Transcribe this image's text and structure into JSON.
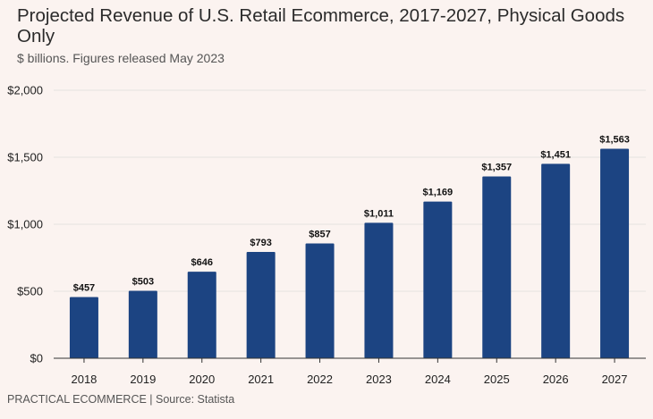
{
  "header": {
    "title": "Projected Revenue of U.S. Retail Ecommerce, 2017-2027, Physical Goods Only",
    "subtitle": "$ billions. Figures released May 2023"
  },
  "footer": {
    "source": "PRACTICAL ECOMMERCE | Source: Statista"
  },
  "chart_data": {
    "type": "bar",
    "title": "Projected Revenue of U.S. Retail Ecommerce, 2017-2027, Physical Goods Only",
    "subtitle": "$ billions. Figures released May 2023",
    "categories": [
      "2018",
      "2019",
      "2020",
      "2021",
      "2022",
      "2023",
      "2024",
      "2025",
      "2026",
      "2027"
    ],
    "values": [
      457,
      503,
      646,
      793,
      857,
      1011,
      1169,
      1357,
      1451,
      1563
    ],
    "data_labels": [
      "$457",
      "$503",
      "$646",
      "$793",
      "$857",
      "$1,011",
      "$1,169",
      "$1,357",
      "$1,451",
      "$1,563"
    ],
    "yticks": [
      0,
      500,
      1000,
      1500,
      2000
    ],
    "ytick_labels": [
      "$0",
      "$500",
      "$1,000",
      "$1,500",
      "$2,000"
    ],
    "ylim": [
      0,
      2000
    ],
    "xlabel": "",
    "ylabel": "",
    "grid": true,
    "legend": "none",
    "bar_color": "#1c4482",
    "grid_color": "#e6e3e1",
    "axis_color": "#333333"
  }
}
